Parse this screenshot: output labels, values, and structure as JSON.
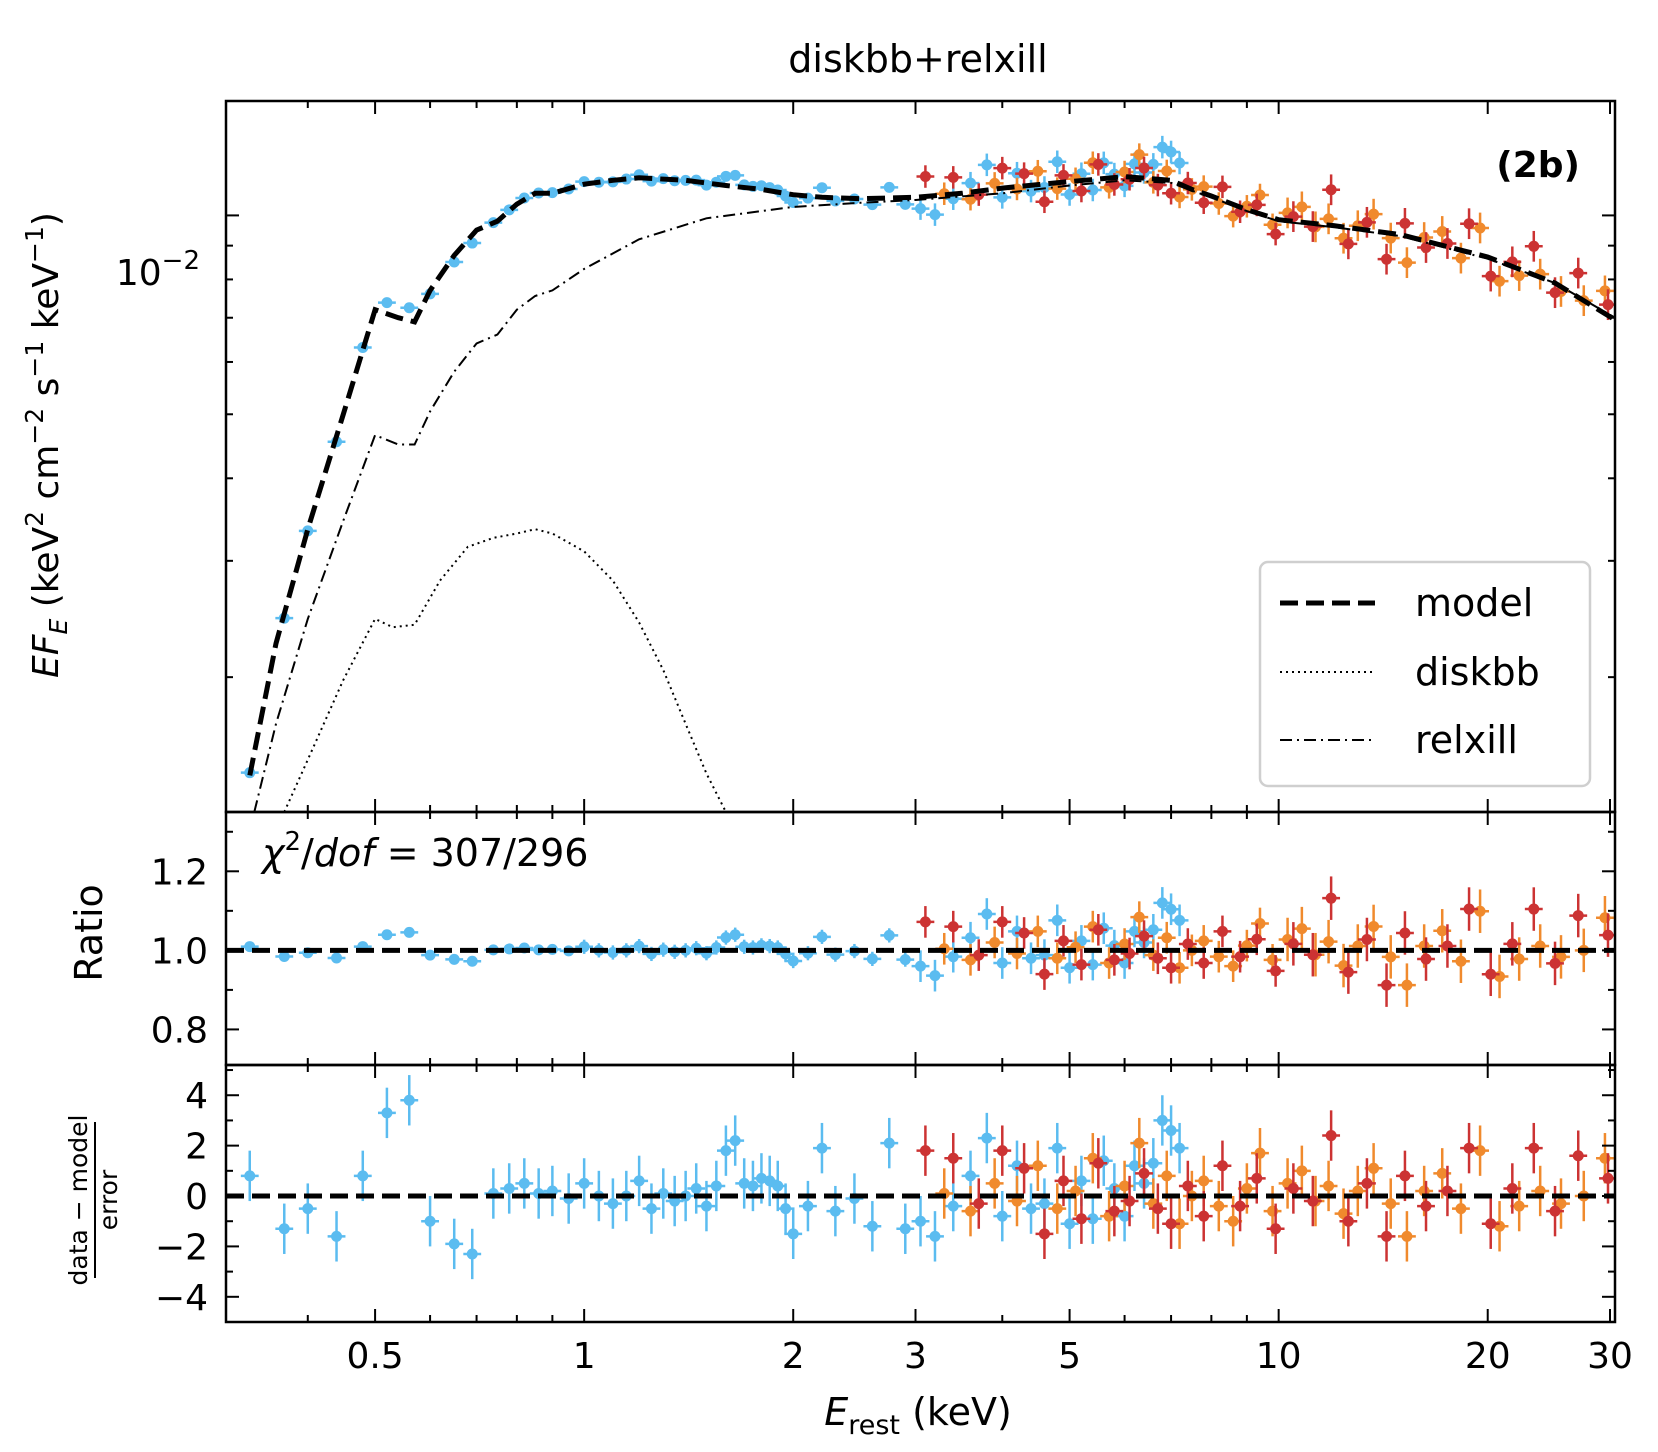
{
  "chart_data": {
    "title": "diskbb+relxill",
    "panel_label": "(2b)",
    "x_axis": {
      "label_main": "E",
      "label_sub": "rest",
      "label_unit": " (keV)",
      "scale": "log",
      "range": [
        0.305,
        30.5
      ],
      "ticks": [
        {
          "value": 0.5,
          "label": "0.5"
        },
        {
          "value": 1,
          "label": "1"
        },
        {
          "value": 2,
          "label": "2"
        },
        {
          "value": 3,
          "label": "3"
        },
        {
          "value": 5,
          "label": "5"
        },
        {
          "value": 10,
          "label": "10"
        },
        {
          "value": 20,
          "label": "20"
        },
        {
          "value": 30,
          "label": "30"
        }
      ]
    },
    "panels": [
      {
        "id": "spectrum",
        "type": "line",
        "y_scale": "log",
        "y_range": [
          0.00125,
          0.0149
        ],
        "y_label": {
          "main": "EF",
          "main_sub": "E",
          "rest": " (keV",
          "sup1": "2",
          "mid1": " cm",
          "sup2": "−2",
          "mid2": " s",
          "sup3": "−1",
          "mid3": " keV",
          "sup4": "−1",
          "end": ")"
        },
        "major_tick": {
          "value": 0.01,
          "base": "10",
          "exp": "−2"
        },
        "legend": {
          "placement": "lower-right",
          "entries": [
            {
              "label": "model",
              "style": "dashed"
            },
            {
              "label": "diskbb",
              "style": "dotted"
            },
            {
              "label": "relxill",
              "style": "dashdot"
            }
          ]
        },
        "model": {
          "x": [
            0.33,
            0.36,
            0.4,
            0.45,
            0.5,
            0.54,
            0.57,
            0.6,
            0.65,
            0.7,
            0.75,
            0.8,
            0.85,
            0.9,
            1.0,
            1.1,
            1.2,
            1.4,
            1.6,
            1.8,
            2.0,
            2.2,
            2.5,
            3.0,
            3.5,
            4.0,
            5.0,
            6.0,
            7.0,
            7.5,
            8.0,
            9.0,
            10.0,
            12.0,
            15.0,
            20.0,
            25.0,
            30.5
          ],
          "y": [
            0.00142,
            0.00225,
            0.00335,
            0.005,
            0.0072,
            0.007,
            0.0069,
            0.0077,
            0.0087,
            0.0095,
            0.0098,
            0.0104,
            0.0108,
            0.0108,
            0.01115,
            0.0113,
            0.0114,
            0.0113,
            0.0111,
            0.01095,
            0.01075,
            0.01065,
            0.0106,
            0.01065,
            0.0108,
            0.011,
            0.01125,
            0.01145,
            0.0113,
            0.01095,
            0.0107,
            0.0102,
            0.00985,
            0.00965,
            0.00935,
            0.00865,
            0.0079,
            0.00695
          ]
        },
        "diskbb": {
          "x": [
            0.37,
            0.4,
            0.45,
            0.5,
            0.53,
            0.57,
            0.62,
            0.68,
            0.74,
            0.8,
            0.85,
            0.9,
            1.0,
            1.1,
            1.2,
            1.3,
            1.4,
            1.5,
            1.6
          ],
          "y": [
            0.00125,
            0.0015,
            0.00198,
            0.00245,
            0.00238,
            0.0024,
            0.0028,
            0.00315,
            0.00325,
            0.0033,
            0.00335,
            0.0033,
            0.0031,
            0.0028,
            0.00242,
            0.00205,
            0.0017,
            0.00143,
            0.00125
          ],
          "note_shown_as_curve": ""
        },
        "relxill": {
          "x": [
            0.335,
            0.36,
            0.4,
            0.45,
            0.5,
            0.54,
            0.57,
            0.6,
            0.65,
            0.7,
            0.75,
            0.8,
            0.85,
            0.9,
            1.0,
            1.2,
            1.5,
            2.0,
            2.5,
            3.0,
            4.0,
            5.0,
            6.0,
            7.0,
            7.5,
            8.0,
            9.0,
            10.0,
            12.0,
            15.0,
            20.0,
            25.0,
            30.5
          ],
          "y": [
            0.00125,
            0.0017,
            0.00245,
            0.00345,
            0.00465,
            0.0045,
            0.0045,
            0.00505,
            0.0058,
            0.0064,
            0.0066,
            0.0072,
            0.00755,
            0.0077,
            0.0083,
            0.0092,
            0.0099,
            0.0103,
            0.01045,
            0.01055,
            0.0108,
            0.0111,
            0.0113,
            0.0112,
            0.0109,
            0.01065,
            0.01015,
            0.0098,
            0.0096,
            0.0093,
            0.0086,
            0.0079,
            0.007
          ]
        }
      },
      {
        "id": "ratio",
        "type": "scatter",
        "y_scale": "linear",
        "y_range": [
          0.71,
          1.35
        ],
        "y_label": "Ratio",
        "ticks": [
          {
            "value": 0.8,
            "label": "0.8"
          },
          {
            "value": 1.0,
            "label": "1.0"
          },
          {
            "value": 1.2,
            "label": "1.2"
          }
        ],
        "reference_line": 1.0,
        "annotation": {
          "chi": "χ",
          "sup": "2",
          "slash": "/",
          "dof": "dof",
          "eq": " = 307/296"
        }
      },
      {
        "id": "residual",
        "type": "scatter",
        "y_scale": "linear",
        "y_range": [
          -5.0,
          5.2
        ],
        "y_label": {
          "numerator": "data − model",
          "denominator": "error"
        },
        "ticks": [
          {
            "value": -4,
            "label": "−4"
          },
          {
            "value": -2,
            "label": "−2"
          },
          {
            "value": 0,
            "label": "0"
          },
          {
            "value": 2,
            "label": "2"
          },
          {
            "value": 4,
            "label": "4"
          }
        ],
        "reference_line": 0
      }
    ],
    "series": [
      {
        "id": "blue",
        "color": "#5bbcf0",
        "energy_range": [
          0.33,
          7.2
        ]
      },
      {
        "id": "orange",
        "color": "#f08a2d",
        "energy_range": [
          3.3,
          29.5
        ]
      },
      {
        "id": "red",
        "color": "#cc3333",
        "energy_range": [
          3.1,
          29.8
        ]
      }
    ],
    "residual_points": {
      "blue": {
        "x": [
          0.33,
          0.37,
          0.4,
          0.44,
          0.48,
          0.52,
          0.56,
          0.6,
          0.65,
          0.69,
          0.74,
          0.78,
          0.82,
          0.86,
          0.9,
          0.95,
          1.0,
          1.05,
          1.1,
          1.15,
          1.2,
          1.25,
          1.3,
          1.35,
          1.4,
          1.45,
          1.5,
          1.55,
          1.6,
          1.65,
          1.7,
          1.75,
          1.8,
          1.85,
          1.9,
          1.95,
          2.0,
          2.1,
          2.2,
          2.3,
          2.45,
          2.6,
          2.75,
          2.9,
          3.05,
          3.2,
          3.4,
          3.6,
          3.8,
          4.0,
          4.2,
          4.4,
          4.6,
          4.8,
          5.0,
          5.2,
          5.4,
          5.6,
          5.8,
          6.0,
          6.2,
          6.4,
          6.6,
          6.8,
          7.0,
          7.2
        ],
        "r": [
          0.8,
          -1.3,
          -0.5,
          -1.6,
          0.8,
          3.3,
          3.8,
          -1.0,
          -1.9,
          -2.3,
          0.1,
          0.3,
          0.5,
          0.1,
          0.2,
          -0.1,
          0.5,
          0.0,
          -0.3,
          0.0,
          0.6,
          -0.5,
          0.1,
          -0.2,
          0.0,
          0.3,
          -0.4,
          0.4,
          1.8,
          2.2,
          0.5,
          0.4,
          0.7,
          0.6,
          0.4,
          -0.5,
          -1.5,
          -0.4,
          1.9,
          -0.6,
          -0.1,
          -1.2,
          2.1,
          -1.3,
          -1.0,
          -1.6,
          -0.4,
          0.8,
          2.3,
          -0.8,
          1.2,
          -0.5,
          -0.3,
          1.9,
          -1.1,
          0.6,
          -0.9,
          1.4,
          0.3,
          -0.8,
          1.2,
          0.5,
          1.3,
          3.0,
          2.6,
          1.9
        ]
      },
      "orange": {
        "x": [
          3.3,
          3.6,
          3.9,
          4.2,
          4.5,
          4.8,
          5.1,
          5.4,
          5.7,
          6.0,
          6.3,
          6.6,
          6.9,
          7.2,
          7.5,
          7.8,
          8.2,
          8.6,
          9.0,
          9.4,
          9.8,
          10.3,
          10.8,
          11.3,
          11.8,
          12.4,
          13.0,
          13.7,
          14.5,
          15.3,
          16.2,
          17.2,
          18.3,
          19.5,
          20.8,
          22.2,
          23.8,
          25.5,
          27.5,
          29.5
        ],
        "r": [
          0.1,
          -0.6,
          0.5,
          -0.2,
          1.2,
          -0.5,
          0.2,
          1.5,
          -0.8,
          0.4,
          2.1,
          -0.3,
          0.8,
          -1.1,
          0.0,
          0.6,
          -0.4,
          -1.0,
          0.3,
          1.7,
          -0.6,
          0.5,
          1.0,
          -0.2,
          0.4,
          -0.7,
          0.2,
          1.1,
          -0.3,
          -1.6,
          0.2,
          0.9,
          -0.5,
          1.8,
          -1.2,
          -0.4,
          0.2,
          -0.3,
          0.0,
          1.5
        ]
      },
      "red": {
        "x": [
          3.1,
          3.4,
          3.7,
          4.0,
          4.3,
          4.6,
          4.9,
          5.2,
          5.5,
          5.8,
          6.1,
          6.4,
          6.7,
          7.0,
          7.4,
          7.8,
          8.3,
          8.8,
          9.3,
          9.9,
          10.5,
          11.2,
          11.9,
          12.6,
          13.4,
          14.3,
          15.2,
          16.3,
          17.5,
          18.8,
          20.2,
          21.7,
          23.3,
          25.0,
          27.0,
          29.8
        ],
        "r": [
          1.8,
          1.5,
          -0.3,
          1.8,
          1.1,
          -1.5,
          0.6,
          -0.9,
          1.3,
          -0.6,
          -0.2,
          0.9,
          -0.5,
          -1.1,
          0.4,
          -0.8,
          1.2,
          -0.4,
          0.7,
          -1.3,
          0.3,
          -0.2,
          2.4,
          -1.0,
          0.5,
          -1.6,
          0.8,
          -0.4,
          0.2,
          1.9,
          -1.1,
          0.3,
          1.9,
          -0.6,
          1.6,
          0.7
        ]
      }
    }
  }
}
